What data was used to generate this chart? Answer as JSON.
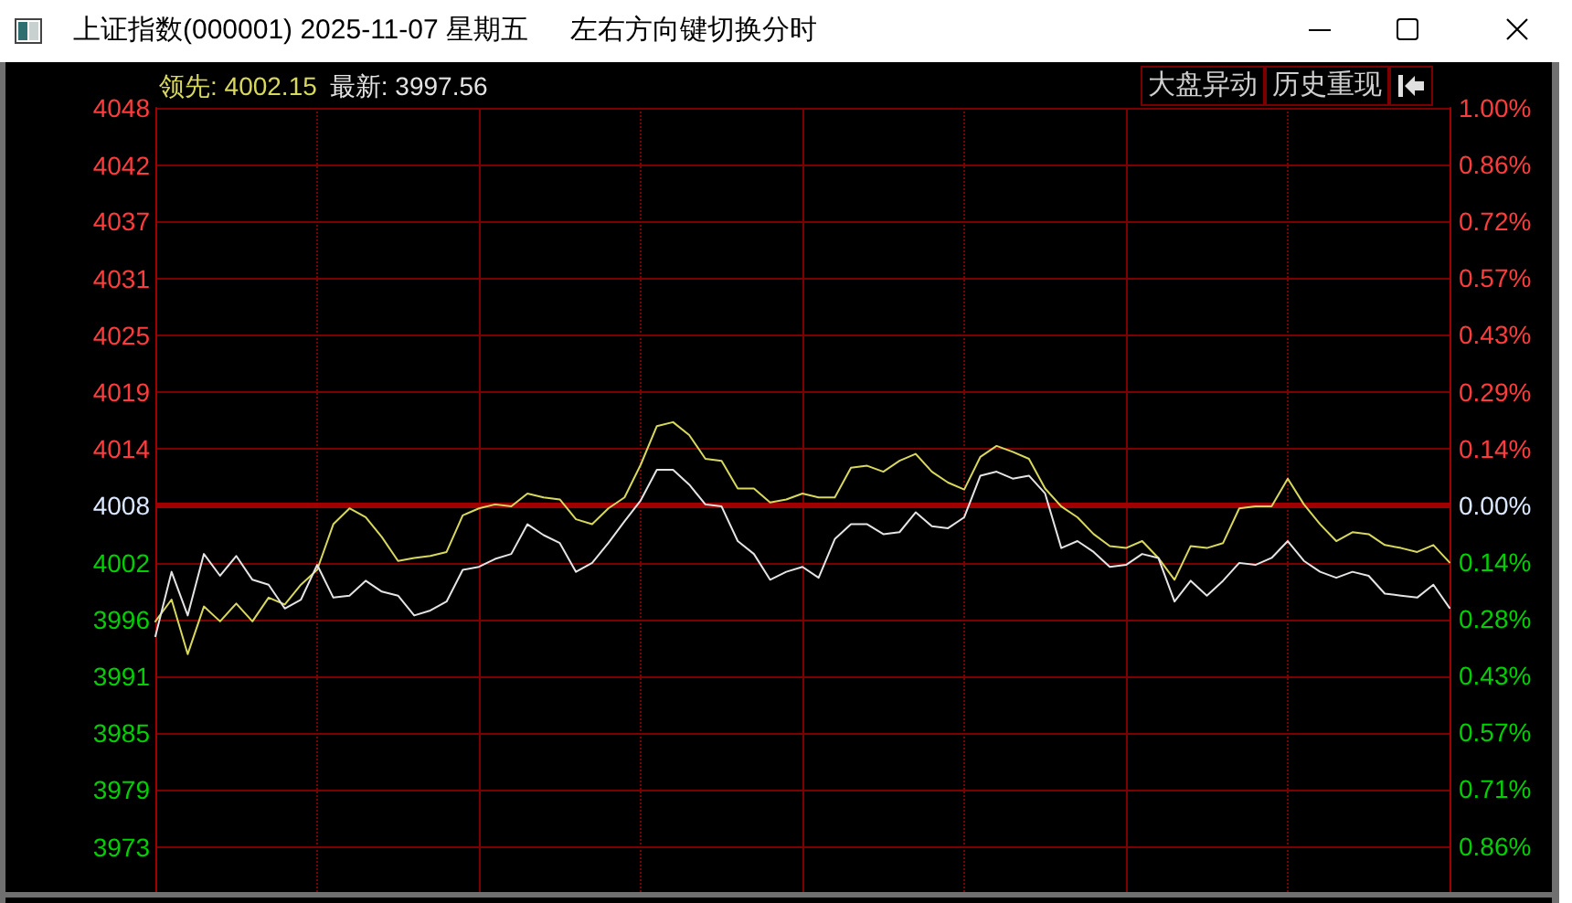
{
  "chart_data": {
    "type": "line",
    "title": "上证指数(000001) 2025-11-07 星期五",
    "subtitle": "左右方向键切换分时",
    "annotations": [
      "大盘异动",
      "历史重现"
    ],
    "categories": [
      null,
      null,
      null,
      null,
      null,
      null,
      null,
      null,
      null,
      null,
      null,
      null,
      null,
      null,
      null,
      null,
      null,
      null,
      null,
      null,
      null,
      null,
      null,
      null,
      null,
      null,
      null,
      null,
      null,
      null,
      null,
      null,
      null,
      null,
      null,
      null,
      null,
      null,
      null,
      null,
      null,
      null,
      null,
      null,
      null,
      null,
      null,
      null,
      null,
      null,
      null,
      null,
      null,
      null,
      null,
      null,
      null,
      null,
      null,
      null,
      null,
      null,
      null,
      null,
      null,
      null,
      null,
      null,
      null,
      null,
      null,
      null,
      null,
      null,
      null,
      null,
      null,
      null,
      null,
      null,
      null
    ],
    "series": [
      {
        "name": "领先: 4002.15",
        "color": "#d8d85c",
        "values": [
          3996.2,
          3998.4,
          3992.9,
          3997.7,
          3996.2,
          3998.0,
          3996.2,
          3998.6,
          3997.9,
          3999.9,
          4001.4,
          4006.0,
          4007.6,
          4006.7,
          4004.7,
          4002.3,
          4002.6,
          4002.8,
          4003.2,
          4006.9,
          4007.6,
          4008.0,
          4007.8,
          4009.1,
          4008.7,
          4008.5,
          4006.5,
          4006.0,
          4007.6,
          4008.7,
          4012.0,
          4015.9,
          4016.3,
          4015.0,
          4012.6,
          4012.4,
          4009.6,
          4009.6,
          4008.2,
          4008.5,
          4009.1,
          4008.7,
          4008.7,
          4011.7,
          4011.9,
          4011.3,
          4012.4,
          4013.1,
          4011.3,
          4010.2,
          4009.5,
          4012.8,
          4013.9,
          4013.3,
          4012.6,
          4009.6,
          4007.8,
          4006.7,
          4005.0,
          4003.8,
          4003.6,
          4004.3,
          4002.6,
          4000.4,
          4003.8,
          4003.6,
          4004.1,
          4007.6,
          4007.8,
          4007.8,
          4010.6,
          4008.0,
          4006.0,
          4004.3,
          4005.2,
          4005.0,
          4003.9,
          4003.6,
          4003.2,
          4003.9,
          4002.15
        ]
      },
      {
        "name": "最新: 3997.56",
        "color": "#e4e4e4",
        "values": [
          3994.7,
          4001.2,
          3996.8,
          4003.0,
          4000.8,
          4002.8,
          4000.4,
          3999.9,
          3997.5,
          3998.4,
          4001.9,
          3998.6,
          3998.8,
          4000.3,
          3999.2,
          3998.8,
          3996.8,
          3997.3,
          3998.2,
          4001.4,
          4001.7,
          4002.5,
          4003.0,
          4006.0,
          4004.9,
          4004.1,
          4001.2,
          4002.1,
          4004.1,
          4006.3,
          4008.4,
          4011.5,
          4011.5,
          4010.0,
          4008.0,
          4007.8,
          4004.3,
          4003.0,
          4000.4,
          4001.2,
          4001.7,
          4000.6,
          4004.5,
          4006.0,
          4006.0,
          4005.0,
          4005.2,
          4007.2,
          4005.8,
          4005.6,
          4006.7,
          4010.9,
          4011.3,
          4010.6,
          4010.9,
          4009.1,
          4003.6,
          4004.3,
          4003.2,
          4001.7,
          4001.9,
          4003.0,
          4002.6,
          3998.2,
          4000.3,
          3998.8,
          4000.3,
          4002.1,
          4001.9,
          4002.6,
          4004.3,
          4002.3,
          4001.2,
          4000.6,
          4001.2,
          4000.8,
          3999.0,
          3998.8,
          3998.6,
          3999.9,
          3997.56
        ]
      }
    ],
    "ylim": [
      3968.9,
      4048
    ],
    "yticks": [
      4048,
      {
        "value": 4042.2,
        "label": "4042"
      },
      {
        "value": 4036.6,
        "label": "4037"
      },
      {
        "value": 4030.8,
        "label": "4031"
      },
      4025,
      {
        "value": 4019.3,
        "label": "4019"
      },
      {
        "value": 4013.6,
        "label": "4014"
      },
      {
        "value": 4007.9,
        "label": "4008"
      },
      {
        "value": 4002.1,
        "label": "4002"
      },
      {
        "value": 3996.4,
        "label": "3996"
      },
      {
        "value": 3990.7,
        "label": "3991"
      },
      {
        "value": 3984.9,
        "label": "3985"
      },
      {
        "value": 3979.2,
        "label": "3979"
      },
      {
        "value": 3973.4,
        "label": "3973"
      }
    ],
    "y2lim": [
      -0.972,
      1.0
    ],
    "y2ticks": [
      {
        "value": 1.0,
        "label": "1.00%"
      },
      {
        "value": 0.858,
        "label": "0.86%"
      },
      {
        "value": 0.716,
        "label": "0.72%"
      },
      {
        "value": 0.572,
        "label": "0.57%"
      },
      {
        "value": 0.429,
        "label": "0.43%"
      },
      {
        "value": 0.286,
        "label": "0.29%"
      },
      {
        "value": 0.143,
        "label": "0.14%"
      },
      {
        "value": 0,
        "label": "0.00%"
      },
      {
        "value": -0.143,
        "label": "0.14%"
      },
      {
        "value": -0.284,
        "label": "0.28%"
      },
      {
        "value": -0.427,
        "label": "0.43%"
      },
      {
        "value": -0.57,
        "label": "0.57%"
      },
      {
        "value": -0.713,
        "label": "0.71%"
      },
      {
        "value": -0.856,
        "label": "0.86%"
      }
    ],
    "ref_lines": [
      {
        "axis": "y",
        "value": 4007.9,
        "color": "#a00000"
      }
    ],
    "grid": true,
    "marker": "none",
    "line_style": "solid"
  }
}
